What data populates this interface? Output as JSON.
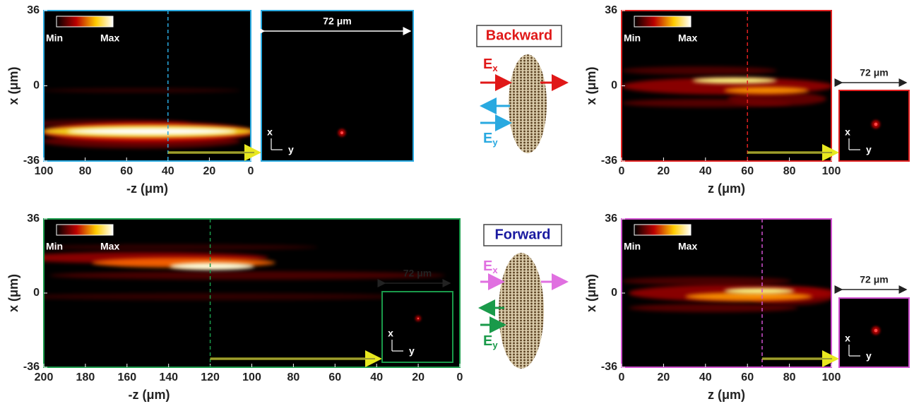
{
  "chart_data": [
    {
      "type": "heatmap",
      "frame_color": "#29a9e0",
      "xlabel": "-z (μm)",
      "ylabel": "x (μm)",
      "xlim": [
        100,
        0
      ],
      "xticks": [
        100,
        80,
        60,
        40,
        20,
        0
      ],
      "ylim": [
        -36,
        36
      ],
      "yticks": [
        -36,
        0,
        36
      ],
      "colorbar": {
        "min_label": "Min",
        "max_label": "Max"
      },
      "slice_z": 40,
      "inset": {
        "scale_label": "72 μm",
        "x_label": "x",
        "y_label": "y"
      }
    },
    {
      "type": "heatmap",
      "frame_color": "#e02020",
      "xlabel": "z (μm)",
      "ylabel": "x (μm)",
      "xlim": [
        0,
        100
      ],
      "xticks": [
        0,
        20,
        40,
        60,
        80,
        100
      ],
      "ylim": [
        -36,
        36
      ],
      "yticks": [
        -36,
        0,
        36
      ],
      "colorbar": {
        "min_label": "Min",
        "max_label": "Max"
      },
      "slice_z": 60,
      "inset": {
        "scale_label": "72 μm",
        "x_label": "x",
        "y_label": "y"
      }
    },
    {
      "type": "heatmap",
      "frame_color": "#1a9a4a",
      "xlabel": "-z (μm)",
      "ylabel": "x (μm)",
      "xlim": [
        200,
        0
      ],
      "xticks": [
        200,
        180,
        160,
        140,
        120,
        100,
        80,
        60,
        40,
        20,
        0
      ],
      "ylim": [
        -36,
        36
      ],
      "yticks": [
        -36,
        0,
        36
      ],
      "colorbar": {
        "min_label": "Min",
        "max_label": "Max"
      },
      "slice_z": 120,
      "inset": {
        "scale_label": "72 μm",
        "x_label": "x",
        "y_label": "y"
      }
    },
    {
      "type": "heatmap",
      "frame_color": "#d050d0",
      "xlabel": "z (μm)",
      "ylabel": "x (μm)",
      "xlim": [
        0,
        100
      ],
      "xticks": [
        0,
        20,
        40,
        60,
        80,
        100
      ],
      "ylim": [
        -36,
        36
      ],
      "yticks": [
        -36,
        0,
        36
      ],
      "colorbar": {
        "min_label": "Min",
        "max_label": "Max"
      },
      "slice_z": 67,
      "inset": {
        "scale_label": "72 μm",
        "x_label": "x",
        "y_label": "y"
      }
    }
  ],
  "diagrams": [
    {
      "label": "Backward",
      "fields": [
        {
          "symbol": "E",
          "subscript": "x"
        },
        {
          "symbol": "E",
          "subscript": "y"
        }
      ]
    },
    {
      "label": "Forward",
      "fields": [
        {
          "symbol": "E",
          "subscript": "x"
        },
        {
          "symbol": "E",
          "subscript": "y"
        }
      ]
    }
  ]
}
